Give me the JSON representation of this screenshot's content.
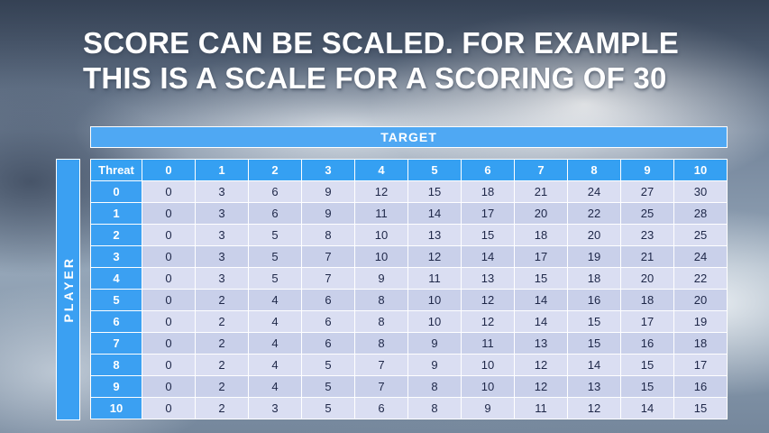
{
  "slide": {
    "title_line1": "SCORE CAN BE SCALED. FOR EXAMPLE",
    "title_line2": "THIS IS A SCALE FOR A SCORING OF 30"
  },
  "table": {
    "target_label": "TARGET",
    "player_label": "PLAYER",
    "threat_label": "Threat",
    "column_headers": [
      "0",
      "1",
      "2",
      "3",
      "4",
      "5",
      "6",
      "7",
      "8",
      "9",
      "10"
    ],
    "rows": [
      {
        "label": "0",
        "values": [
          0,
          3,
          6,
          9,
          12,
          15,
          18,
          21,
          24,
          27,
          30
        ]
      },
      {
        "label": "1",
        "values": [
          0,
          3,
          6,
          9,
          11,
          14,
          17,
          20,
          22,
          25,
          28
        ]
      },
      {
        "label": "2",
        "values": [
          0,
          3,
          5,
          8,
          10,
          13,
          15,
          18,
          20,
          23,
          25
        ]
      },
      {
        "label": "3",
        "values": [
          0,
          3,
          5,
          7,
          10,
          12,
          14,
          17,
          19,
          21,
          24
        ]
      },
      {
        "label": "4",
        "values": [
          0,
          3,
          5,
          7,
          9,
          11,
          13,
          15,
          18,
          20,
          22
        ]
      },
      {
        "label": "5",
        "values": [
          0,
          2,
          4,
          6,
          8,
          10,
          12,
          14,
          16,
          18,
          20
        ]
      },
      {
        "label": "6",
        "values": [
          0,
          2,
          4,
          6,
          8,
          10,
          12,
          14,
          15,
          17,
          19
        ]
      },
      {
        "label": "7",
        "values": [
          0,
          2,
          4,
          6,
          8,
          9,
          11,
          13,
          15,
          16,
          18
        ]
      },
      {
        "label": "8",
        "values": [
          0,
          2,
          4,
          5,
          7,
          9,
          10,
          12,
          14,
          15,
          17
        ]
      },
      {
        "label": "9",
        "values": [
          0,
          2,
          4,
          5,
          7,
          8,
          10,
          12,
          13,
          15,
          16
        ]
      },
      {
        "label": "10",
        "values": [
          0,
          2,
          3,
          5,
          6,
          8,
          9,
          11,
          12,
          14,
          15
        ]
      }
    ]
  },
  "colors": {
    "header_blue": "#35A0F2",
    "target_blue": "#4FA8F3",
    "row_light": "#DADEF2",
    "row_dark": "#C9D0EA",
    "cell_text": "#1e2748"
  }
}
